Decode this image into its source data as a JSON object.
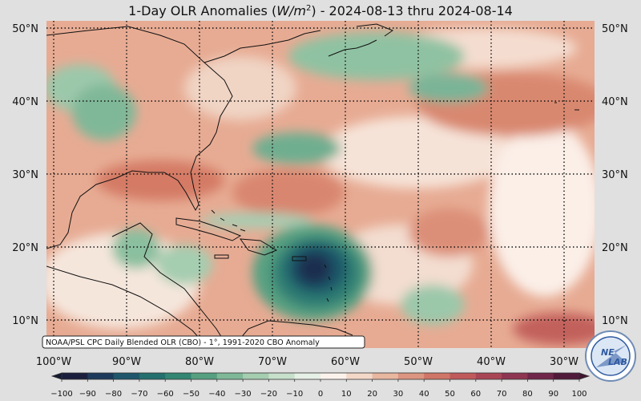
{
  "title": {
    "prefix": "1-Day OLR Anomalies (",
    "unit_base": "W/m",
    "unit_exp": "2",
    "suffix": ") - 2024-08-13 thru 2024-08-14"
  },
  "map": {
    "lat_labels": [
      "50°N",
      "40°N",
      "30°N",
      "20°N",
      "10°N"
    ],
    "lon_labels": [
      "100°W",
      "90°W",
      "80°W",
      "70°W",
      "60°W",
      "50°W",
      "40°W",
      "30°W"
    ],
    "source_label": "NOAA/PSL CPC Daily Blended OLR (CBO) - 1°, 1991-2020 CBO Anomaly"
  },
  "colorbar": {
    "tick_labels": [
      "−100",
      "−90",
      "−80",
      "−70",
      "−60",
      "−50",
      "−40",
      "−30",
      "−20",
      "−10",
      "0",
      "10",
      "20",
      "30",
      "40",
      "50",
      "60",
      "70",
      "80",
      "90",
      "100"
    ],
    "colors": [
      "#1b1f3d",
      "#1d3a5c",
      "#1f566b",
      "#24706f",
      "#338673",
      "#56a081",
      "#7fb898",
      "#a5cdb0",
      "#c6e0cb",
      "#e6f0e6",
      "#fbf2ec",
      "#f3d8c8",
      "#e8b7a0",
      "#db9580",
      "#cf7668",
      "#c05a5a",
      "#a94655",
      "#8e3552",
      "#6f2648",
      "#501a3a"
    ]
  },
  "logo": {
    "text_top": "NE",
    "text_bottom": "LAB"
  }
}
